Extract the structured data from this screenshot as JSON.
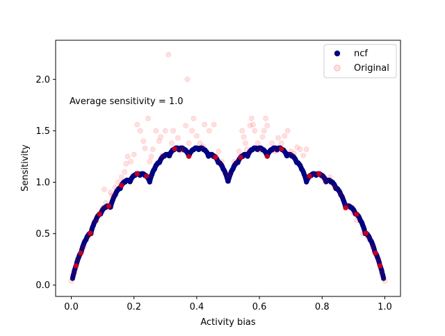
{
  "chart_data": {
    "type": "scatter",
    "title": "",
    "xlabel": "Activity bias",
    "ylabel": "Sensitivity",
    "xlim": [
      -0.05,
      1.05
    ],
    "ylim": [
      -0.11,
      2.38
    ],
    "xticks": [
      0.0,
      0.2,
      0.4,
      0.6,
      0.8,
      1.0
    ],
    "xtick_labels": [
      "0.0",
      "0.2",
      "0.4",
      "0.6",
      "0.8",
      "1.0"
    ],
    "yticks": [
      0.0,
      0.5,
      1.0,
      1.5,
      2.0
    ],
    "ytick_labels": [
      "0.0",
      "0.5",
      "1.0",
      "1.5",
      "2.0"
    ],
    "annotation": "Average sensitivity = 1.0",
    "legend_position": "top-right",
    "grid": false,
    "series": [
      {
        "name": "ncf",
        "color": "#000080",
        "opacity": 1.0,
        "curve": "blancmange (Takagi) curve: sensitivity = 2 × Σ_n 2^-n · dist(2^n·p, nearest integer); dense points for p in [0.004, 0.996]",
        "x_range": [
          0.004,
          0.996
        ],
        "y_range": [
          0.03,
          1.33
        ]
      },
      {
        "name": "Original",
        "color": "#ff0000",
        "opacity": 0.12,
        "points": [
          [
            0.0,
            0.04
          ],
          [
            0.01,
            0.12
          ],
          [
            0.015,
            0.19
          ],
          [
            0.02,
            0.24
          ],
          [
            0.03,
            0.3
          ],
          [
            0.04,
            0.37
          ],
          [
            0.055,
            0.47
          ],
          [
            0.065,
            0.5
          ],
          [
            0.08,
            0.62
          ],
          [
            0.09,
            0.7
          ],
          [
            0.1,
            0.75
          ],
          [
            0.105,
            0.93
          ],
          [
            0.11,
            0.8
          ],
          [
            0.12,
            0.75
          ],
          [
            0.125,
            0.9
          ],
          [
            0.13,
            0.87
          ],
          [
            0.14,
            0.95
          ],
          [
            0.15,
            1.0
          ],
          [
            0.16,
            1.05
          ],
          [
            0.17,
            1.1
          ],
          [
            0.175,
            1.18
          ],
          [
            0.18,
            1.25
          ],
          [
            0.19,
            1.2
          ],
          [
            0.2,
            1.27
          ],
          [
            0.21,
            1.56
          ],
          [
            0.22,
            1.5
          ],
          [
            0.23,
            1.4
          ],
          [
            0.235,
            1.33
          ],
          [
            0.245,
            1.62
          ],
          [
            0.25,
            1.2
          ],
          [
            0.255,
            1.25
          ],
          [
            0.26,
            1.32
          ],
          [
            0.27,
            1.5
          ],
          [
            0.28,
            1.4
          ],
          [
            0.285,
            1.44
          ],
          [
            0.29,
            1.26
          ],
          [
            0.3,
            1.5
          ],
          [
            0.31,
            2.24
          ],
          [
            0.32,
            1.38
          ],
          [
            0.325,
            1.5
          ],
          [
            0.34,
            1.43
          ],
          [
            0.35,
            1.31
          ],
          [
            0.355,
            1.32
          ],
          [
            0.365,
            1.55
          ],
          [
            0.37,
            2.0
          ],
          [
            0.375,
            1.38
          ],
          [
            0.385,
            1.5
          ],
          [
            0.39,
            1.62
          ],
          [
            0.4,
            1.45
          ],
          [
            0.41,
            1.38
          ],
          [
            0.42,
            1.35
          ],
          [
            0.425,
            1.56
          ],
          [
            0.44,
            1.5
          ],
          [
            0.455,
            1.56
          ],
          [
            0.46,
            1.25
          ],
          [
            0.47,
            1.3
          ],
          [
            0.48,
            1.2
          ],
          [
            0.5,
            1.07
          ],
          [
            0.52,
            1.2
          ],
          [
            0.535,
            1.3
          ],
          [
            0.545,
            1.5
          ],
          [
            0.55,
            1.44
          ],
          [
            0.555,
            1.38
          ],
          [
            0.56,
            1.32
          ],
          [
            0.57,
            1.55
          ],
          [
            0.575,
            1.62
          ],
          [
            0.58,
            1.56
          ],
          [
            0.585,
            1.5
          ],
          [
            0.595,
            1.38
          ],
          [
            0.6,
            1.31
          ],
          [
            0.61,
            1.44
          ],
          [
            0.615,
            1.5
          ],
          [
            0.62,
            1.62
          ],
          [
            0.625,
            1.55
          ],
          [
            0.64,
            1.38
          ],
          [
            0.65,
            1.3
          ],
          [
            0.66,
            1.43
          ],
          [
            0.67,
            1.38
          ],
          [
            0.68,
            1.45
          ],
          [
            0.69,
            1.5
          ],
          [
            0.7,
            1.3
          ],
          [
            0.71,
            1.28
          ],
          [
            0.72,
            1.34
          ],
          [
            0.73,
            1.32
          ],
          [
            0.74,
            1.26
          ],
          [
            0.75,
            1.32
          ],
          [
            0.76,
            1.06
          ],
          [
            0.78,
            1.08
          ],
          [
            0.8,
            1.05
          ],
          [
            0.81,
            1.0
          ],
          [
            0.825,
            1.05
          ],
          [
            0.84,
            0.95
          ],
          [
            0.86,
            0.88
          ],
          [
            0.875,
            0.75
          ],
          [
            0.88,
            0.78
          ],
          [
            0.9,
            0.7
          ],
          [
            0.91,
            0.63
          ],
          [
            0.93,
            0.5
          ],
          [
            0.945,
            0.47
          ],
          [
            0.96,
            0.37
          ],
          [
            0.97,
            0.3
          ],
          [
            0.98,
            0.24
          ],
          [
            0.985,
            0.19
          ],
          [
            0.99,
            0.12
          ],
          [
            1.0,
            0.04
          ]
        ]
      }
    ]
  }
}
